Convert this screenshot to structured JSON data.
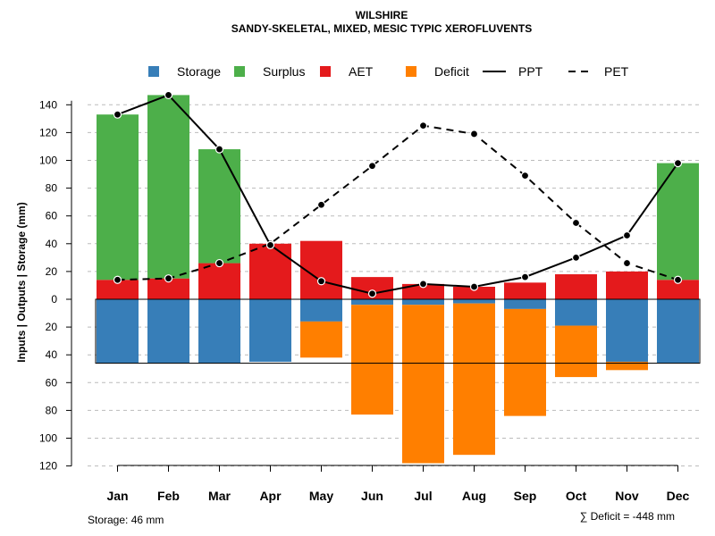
{
  "chart_data": {
    "type": "bar",
    "title": "WILSHIRE",
    "subtitle": "SANDY-SKELETAL, MIXED, MESIC TYPIC XEROFLUVENTS",
    "ylabel": "Inputs | Outputs | Storage    (mm)",
    "ylim": [
      -120,
      150
    ],
    "y_ticks": [
      140,
      120,
      100,
      80,
      60,
      40,
      20,
      0,
      -20,
      -40,
      -60,
      -80,
      -100,
      -120
    ],
    "y_tick_labels": [
      "140",
      "120",
      "100",
      "80",
      "60",
      "40",
      "20",
      "0",
      "20",
      "40",
      "60",
      "80",
      "100",
      "120"
    ],
    "categories": [
      "Jan",
      "Feb",
      "Mar",
      "Apr",
      "May",
      "Jun",
      "Jul",
      "Aug",
      "Sep",
      "Oct",
      "Nov",
      "Dec"
    ],
    "legend": [
      "Storage",
      "Surplus",
      "AET",
      "Deficit",
      "PPT",
      "PET"
    ],
    "colors": {
      "Storage": "#377EB8",
      "Surplus": "#4DAF4A",
      "AET": "#E41A1C",
      "Deficit": "#FF7F00",
      "line": "#000000",
      "grid": "#BBBBBB"
    },
    "series": [
      {
        "name": "AET",
        "values": [
          14,
          15,
          26,
          40,
          42,
          16,
          11,
          9,
          12,
          18,
          20,
          14
        ]
      },
      {
        "name": "Surplus",
        "values": [
          119,
          132,
          82,
          0,
          0,
          0,
          0,
          0,
          0,
          0,
          0,
          84
        ]
      },
      {
        "name": "Storage",
        "values": [
          46,
          46,
          46,
          45,
          16,
          4,
          4,
          3,
          7,
          19,
          45,
          46
        ]
      },
      {
        "name": "Deficit",
        "values": [
          0,
          0,
          0,
          0,
          26,
          79,
          114,
          109,
          77,
          37,
          6,
          0
        ]
      },
      {
        "name": "PPT",
        "values": [
          133,
          147,
          108,
          39,
          13,
          4,
          11,
          9,
          16,
          30,
          46,
          98
        ]
      },
      {
        "name": "PET",
        "values": [
          14,
          15,
          26,
          40,
          68,
          96,
          125,
          119,
          89,
          55,
          26,
          14
        ]
      }
    ],
    "storage_capacity": 46,
    "storage_label": "Storage: 46 mm",
    "deficit_total_label": "∑ Deficit = -448 mm"
  }
}
